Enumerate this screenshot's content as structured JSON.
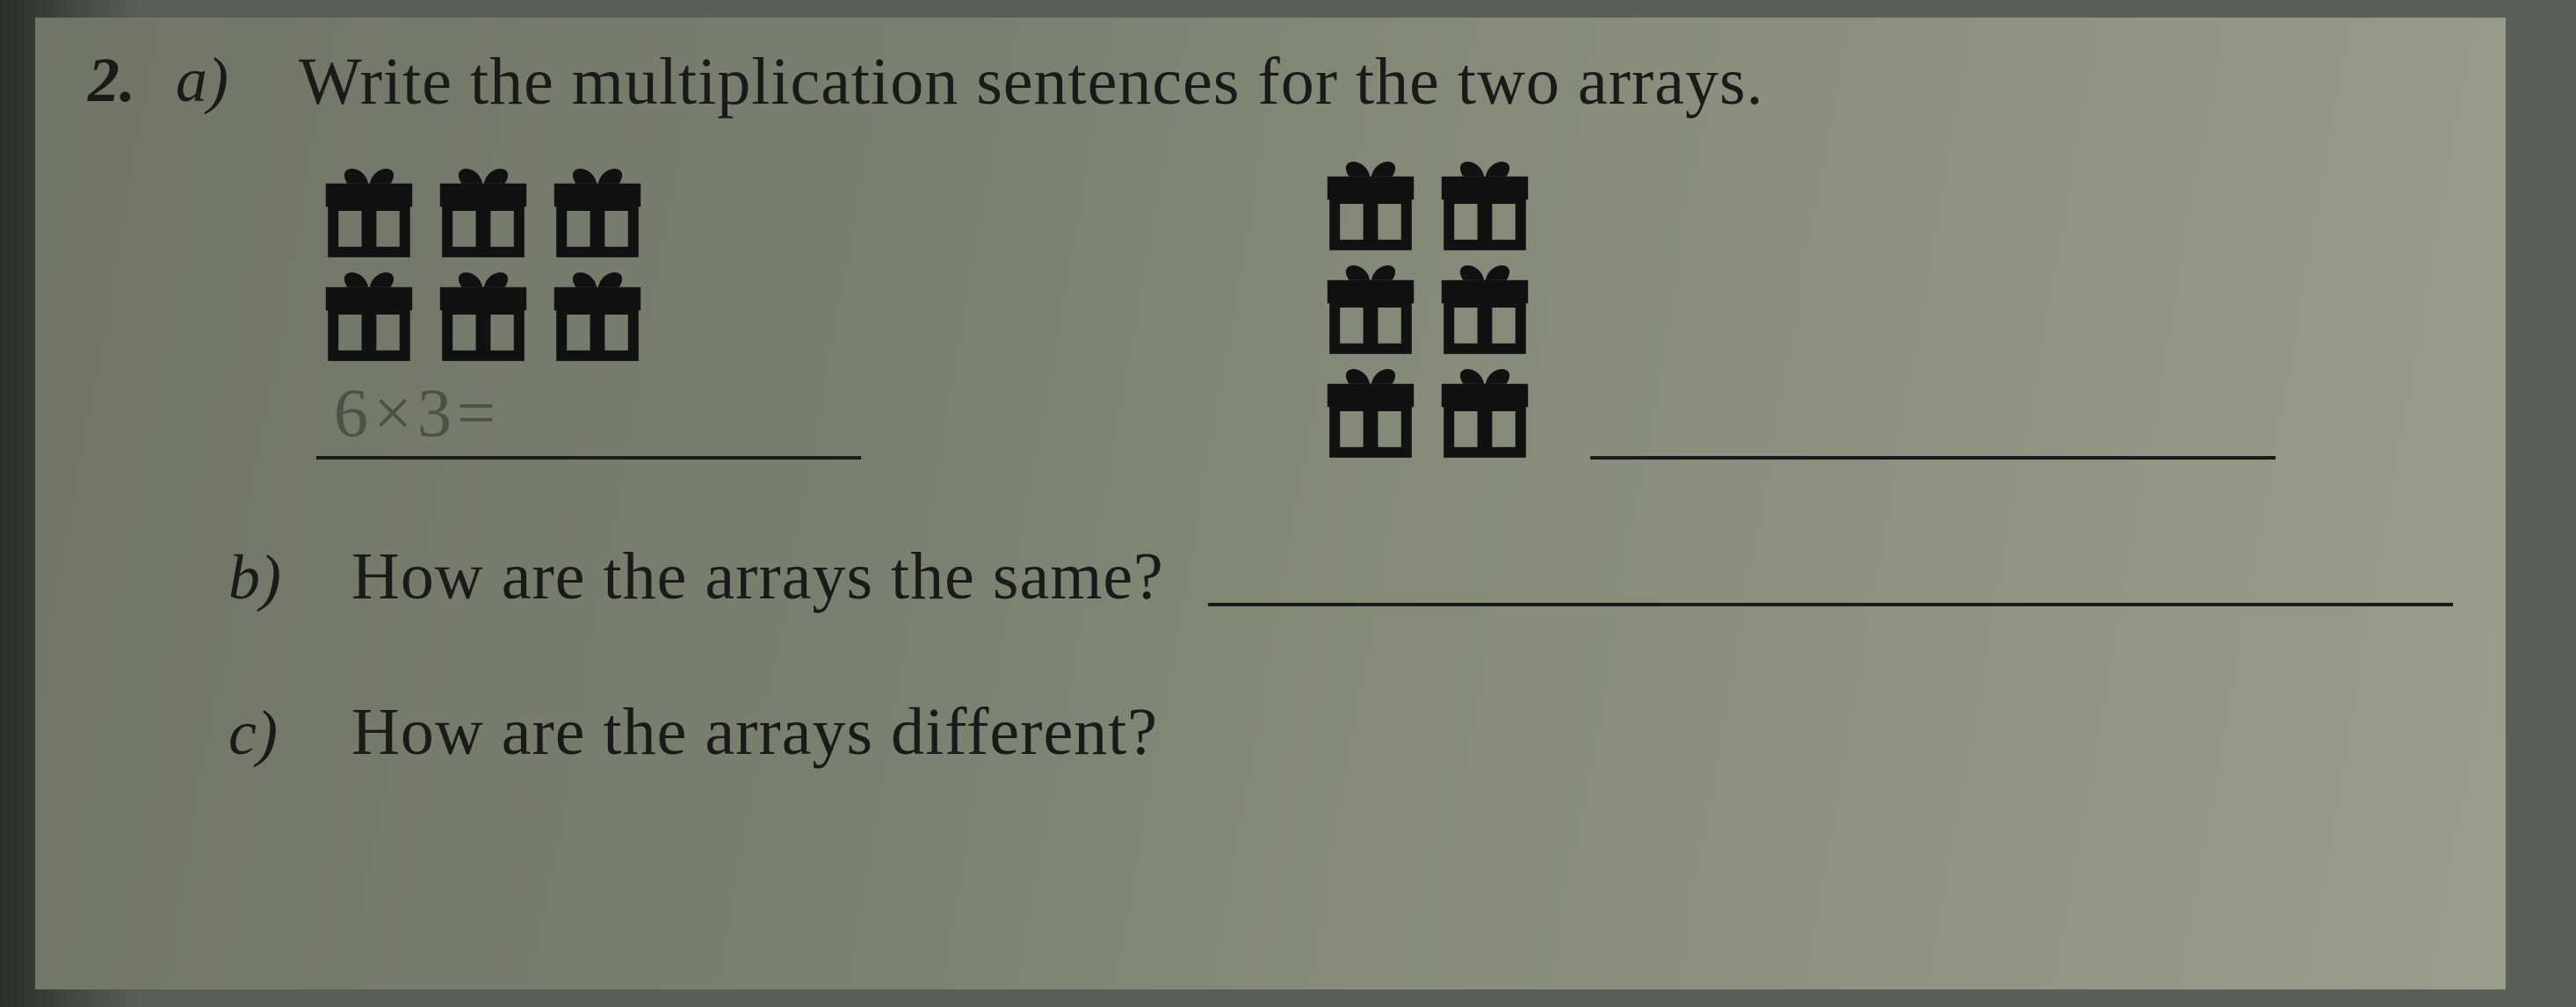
{
  "question_number": "2.",
  "part_a": {
    "letter": "a)",
    "prompt": "Write the multiplication sentences for the two arrays.",
    "array1": {
      "rows": 2,
      "cols": 3,
      "student_answer": "6×3="
    },
    "array2": {
      "rows": 3,
      "cols": 2,
      "student_answer": ""
    }
  },
  "part_b": {
    "letter": "b)",
    "prompt": "How are the arrays the same?"
  },
  "part_c": {
    "letter": "c)",
    "prompt": "How are the arrays different?"
  },
  "colors": {
    "ink": "#1a1a1a",
    "pencil": "#4a5248",
    "paper_light": "#989e8a",
    "paper_dark": "#707565"
  },
  "icon": "gift-box"
}
